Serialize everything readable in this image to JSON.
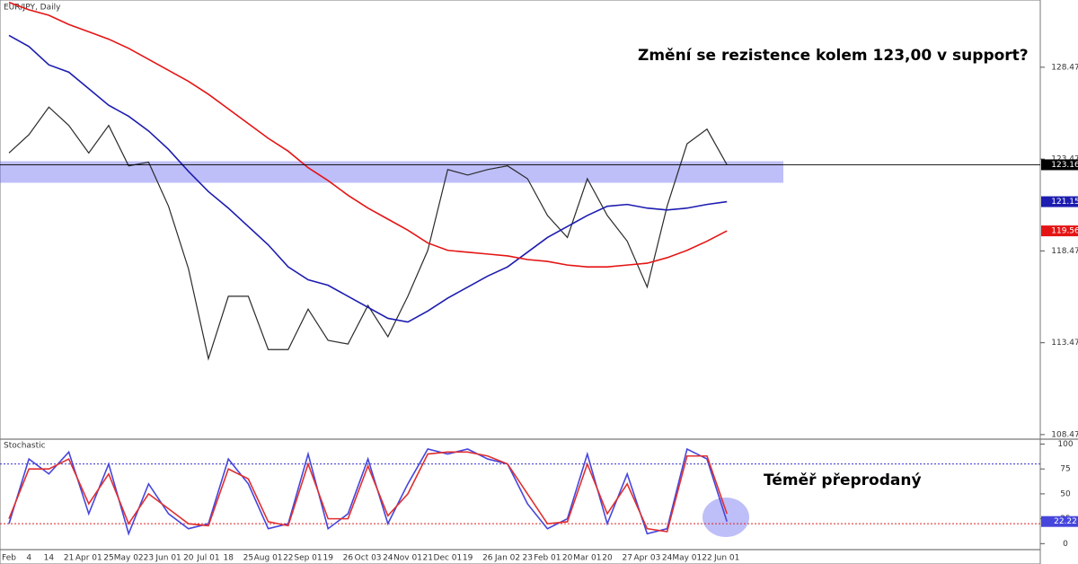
{
  "chart_data": [
    {
      "type": "line",
      "title": "EUR/JPY, Daily",
      "annotation": "Změní se rezistence kolem 123,00 v support?",
      "categories": [
        "Feb",
        "4",
        "14",
        "21",
        "Apr 01",
        "25",
        "May 02",
        "23",
        "Jun 01",
        "20",
        "Jul 01",
        "18",
        "25",
        "Aug 01",
        "22",
        "Sep 01",
        "19",
        "26",
        "Oct 03",
        "24",
        "Nov 01",
        "21",
        "Dec 01",
        "19",
        "26",
        "Jan 02",
        "23",
        "Feb 01",
        "20",
        "Mar 01",
        "20",
        "27",
        "Apr 03",
        "24",
        "May 01",
        "22",
        "Jun 01"
      ],
      "ylim": [
        108.27,
        132.13
      ],
      "yticks": [
        108.47,
        113.47,
        118.47,
        123.47,
        128.47
      ],
      "zone": [
        122.18,
        123.35
      ],
      "series": [
        {
          "color": "#2b2b2b",
          "values": [
            123.8,
            124.8,
            126.3,
            125.3,
            123.8,
            125.3,
            123.1,
            123.3,
            120.9,
            117.5,
            112.6,
            116.0,
            116.0,
            113.1,
            113.1,
            115.3,
            113.6,
            113.4,
            115.5,
            113.8,
            116.0,
            118.5,
            122.9,
            122.6,
            122.9,
            123.1,
            122.4,
            120.4,
            119.2,
            122.4,
            120.4,
            119.0,
            116.5,
            120.9,
            124.3,
            125.1,
            123.16
          ]
        },
        {
          "color": "#1c1cb0",
          "values": [
            130.2,
            129.6,
            128.6,
            128.2,
            127.3,
            126.4,
            125.8,
            125.0,
            124.0,
            122.8,
            121.7,
            120.8,
            119.8,
            118.8,
            117.6,
            116.9,
            116.6,
            116.0,
            115.4,
            114.8,
            114.6,
            115.2,
            115.9,
            116.5,
            117.1,
            117.6,
            118.4,
            119.2,
            119.8,
            120.4,
            120.9,
            121.0,
            120.8,
            120.7,
            120.8,
            121.0,
            121.15
          ]
        },
        {
          "color": "#e51414",
          "values": [
            132.0,
            131.6,
            131.3,
            130.8,
            130.4,
            130.0,
            129.5,
            128.9,
            128.3,
            127.7,
            127.0,
            126.2,
            125.4,
            124.6,
            123.9,
            123.0,
            122.3,
            121.5,
            120.8,
            120.2,
            119.6,
            118.9,
            118.5,
            118.4,
            118.3,
            118.2,
            118.0,
            117.9,
            117.7,
            117.6,
            117.6,
            117.7,
            117.8,
            118.1,
            118.5,
            119.0,
            119.56
          ]
        }
      ]
    },
    {
      "type": "line",
      "title": "Stochastic",
      "annotation": "Téměř přeprodaný",
      "ylim": [
        -6,
        104
      ],
      "yticks": [
        0,
        25,
        50,
        75,
        100
      ],
      "levels": [
        80,
        20
      ],
      "series": [
        {
          "color": "#4646dc",
          "values": [
            20,
            85,
            70,
            92,
            30,
            80,
            10,
            60,
            30,
            15,
            20,
            85,
            60,
            15,
            20,
            90,
            15,
            30,
            85,
            20,
            60,
            95,
            90,
            95,
            85,
            80,
            40,
            15,
            25,
            90,
            20,
            70,
            10,
            15,
            95,
            85,
            22.22
          ]
        },
        {
          "color": "#e03030",
          "values": [
            25,
            75,
            75,
            85,
            40,
            70,
            20,
            50,
            35,
            20,
            18,
            75,
            65,
            22,
            18,
            80,
            25,
            25,
            78,
            28,
            50,
            90,
            92,
            92,
            88,
            80,
            50,
            20,
            22,
            80,
            30,
            60,
            15,
            12,
            88,
            88,
            30
          ]
        }
      ]
    }
  ]
}
